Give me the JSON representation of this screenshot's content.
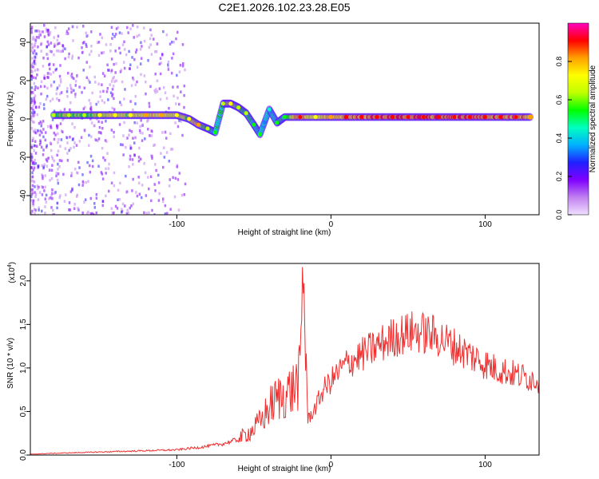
{
  "title": "C2E1.2026.102.23.28.E05",
  "chart_data": [
    {
      "type": "heatmap",
      "title": "C2E1.2026.102.23.28.E05",
      "xlabel": "Height of straight line (km)",
      "ylabel": "Frequency (Hz)",
      "xlim": [
        -195,
        135
      ],
      "ylim": [
        -50,
        50
      ],
      "xticks": [
        -100,
        0,
        100
      ],
      "yticks": [
        -40,
        -20,
        0,
        20,
        40
      ],
      "colorbar": {
        "label": "Normalized spectral amplitude",
        "range": [
          0,
          1
        ],
        "ticks": [
          "0.0",
          "0.2",
          "0.4",
          "0.6",
          "0.8"
        ],
        "colormap": [
          "#f0e0ff",
          "#c080f0",
          "#8000ff",
          "#2020ff",
          "#00b0ff",
          "#00ffc0",
          "#00ff00",
          "#c0ff00",
          "#ffff00",
          "#ffa000",
          "#ff0000",
          "#ff00c0"
        ]
      },
      "ridge": [
        {
          "x": -180,
          "y": 2,
          "v": 0.6
        },
        {
          "x": -170,
          "y": 2,
          "v": 0.65
        },
        {
          "x": -160,
          "y": 2,
          "v": 0.6
        },
        {
          "x": -150,
          "y": 2,
          "v": 0.7
        },
        {
          "x": -140,
          "y": 2,
          "v": 0.75
        },
        {
          "x": -130,
          "y": 2,
          "v": 0.7
        },
        {
          "x": -120,
          "y": 2,
          "v": 0.8
        },
        {
          "x": -110,
          "y": 2,
          "v": 0.8
        },
        {
          "x": -100,
          "y": 2,
          "v": 0.75
        },
        {
          "x": -92,
          "y": 0,
          "v": 0.7
        },
        {
          "x": -86,
          "y": -3,
          "v": 0.85
        },
        {
          "x": -80,
          "y": -5,
          "v": 0.6
        },
        {
          "x": -75,
          "y": -7,
          "v": 0.5
        },
        {
          "x": -70,
          "y": 8,
          "v": 0.6
        },
        {
          "x": -65,
          "y": 8,
          "v": 0.75
        },
        {
          "x": -60,
          "y": 6,
          "v": 0.65
        },
        {
          "x": -55,
          "y": 3,
          "v": 0.6
        },
        {
          "x": -50,
          "y": -3,
          "v": 0.55
        },
        {
          "x": -46,
          "y": -8,
          "v": 0.5
        },
        {
          "x": -40,
          "y": 5,
          "v": 0.45
        },
        {
          "x": -35,
          "y": -2,
          "v": 0.5
        },
        {
          "x": -30,
          "y": 1,
          "v": 0.55
        },
        {
          "x": -20,
          "y": 1,
          "v": 0.9
        },
        {
          "x": -10,
          "y": 1,
          "v": 0.75
        },
        {
          "x": 0,
          "y": 1,
          "v": 0.85
        },
        {
          "x": 10,
          "y": 1,
          "v": 0.9
        },
        {
          "x": 20,
          "y": 1,
          "v": 0.95
        },
        {
          "x": 30,
          "y": 1,
          "v": 0.95
        },
        {
          "x": 40,
          "y": 1,
          "v": 0.95
        },
        {
          "x": 50,
          "y": 1,
          "v": 0.95
        },
        {
          "x": 60,
          "y": 1,
          "v": 0.95
        },
        {
          "x": 70,
          "y": 1,
          "v": 0.95
        },
        {
          "x": 80,
          "y": 1,
          "v": 0.95
        },
        {
          "x": 90,
          "y": 1,
          "v": 0.95
        },
        {
          "x": 100,
          "y": 1,
          "v": 0.95
        },
        {
          "x": 110,
          "y": 1,
          "v": 0.95
        },
        {
          "x": 120,
          "y": 1,
          "v": 0.9
        },
        {
          "x": 130,
          "y": 1,
          "v": 0.85
        }
      ]
    },
    {
      "type": "line",
      "xlabel": "Height of straight line (km)",
      "ylabel": "SNR (10 * v/v)",
      "scale_label": "(x10",
      "scale_exp": "4",
      "scale_close": ")",
      "xlim": [
        -195,
        135
      ],
      "ylim": [
        0,
        2.2
      ],
      "xticks": [
        -100,
        0,
        100
      ],
      "yticks": [
        "0.0",
        "0.5",
        "1.0",
        "1.5",
        "2.0"
      ],
      "series": [
        {
          "name": "SNR",
          "color": "#f03030",
          "x": [
            -195,
            -180,
            -160,
            -140,
            -120,
            -100,
            -90,
            -80,
            -70,
            -60,
            -50,
            -45,
            -40,
            -35,
            -30,
            -25,
            -20,
            -18,
            -15,
            -10,
            -5,
            0,
            5,
            10,
            15,
            20,
            25,
            30,
            35,
            40,
            45,
            50,
            55,
            60,
            65,
            70,
            75,
            80,
            85,
            90,
            95,
            100,
            105,
            110,
            115,
            120,
            125,
            130,
            135
          ],
          "y": [
            0.01,
            0.02,
            0.03,
            0.04,
            0.05,
            0.06,
            0.08,
            0.1,
            0.13,
            0.18,
            0.3,
            0.4,
            0.55,
            0.65,
            0.7,
            0.75,
            0.9,
            2.2,
            0.4,
            0.55,
            0.75,
            0.85,
            0.95,
            1.05,
            1.1,
            1.15,
            1.2,
            1.25,
            1.3,
            1.35,
            1.38,
            1.4,
            1.42,
            1.4,
            1.38,
            1.35,
            1.3,
            1.25,
            1.2,
            1.15,
            1.1,
            1.05,
            1.0,
            0.98,
            0.95,
            0.92,
            0.9,
            0.88,
            0.86
          ]
        }
      ]
    }
  ]
}
